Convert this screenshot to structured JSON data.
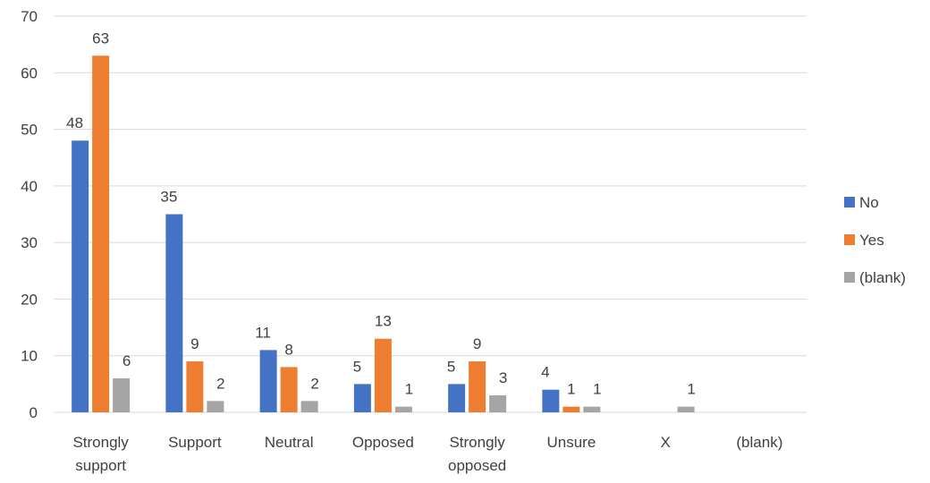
{
  "chart_data": {
    "type": "bar",
    "title": "",
    "xlabel": "",
    "ylabel": "",
    "ylim": [
      0,
      70
    ],
    "yticks": [
      0,
      10,
      20,
      30,
      40,
      50,
      60,
      70
    ],
    "grid": true,
    "legend_position": "right",
    "categories": [
      [
        "Strongly",
        "support"
      ],
      [
        "Support"
      ],
      [
        "Neutral"
      ],
      [
        "Opposed"
      ],
      [
        "Strongly",
        "opposed"
      ],
      [
        "Unsure"
      ],
      [
        "X"
      ],
      [
        "(blank)"
      ]
    ],
    "series": [
      {
        "name": "No",
        "color": "#4472c4",
        "values": [
          48,
          35,
          11,
          5,
          5,
          4,
          null,
          null
        ]
      },
      {
        "name": "Yes",
        "color": "#ed7d31",
        "values": [
          63,
          9,
          8,
          13,
          9,
          1,
          null,
          null
        ]
      },
      {
        "name": "(blank)",
        "color": "#a5a5a5",
        "values": [
          6,
          2,
          2,
          1,
          3,
          1,
          1,
          null
        ]
      }
    ]
  }
}
